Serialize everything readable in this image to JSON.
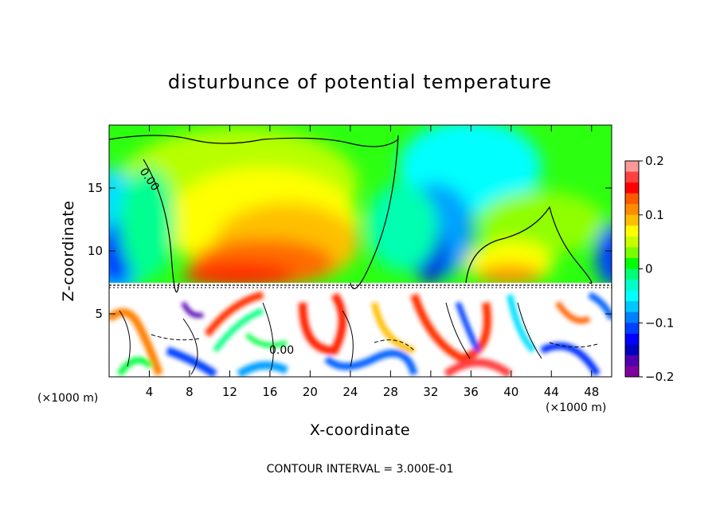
{
  "chart_data": {
    "type": "heatmap",
    "title": "disturbunce of potential temperature",
    "xlabel": "X-coordinate",
    "ylabel": "Z-coordinate",
    "x_unit_left": "(×1000 m)",
    "x_unit_right": "(×1000 m)",
    "xlim": [
      0,
      50
    ],
    "ylim": [
      0,
      20
    ],
    "x_ticks": [
      4,
      8,
      12,
      16,
      20,
      24,
      28,
      32,
      36,
      40,
      44,
      48
    ],
    "y_ticks": [
      5,
      10,
      15
    ],
    "colorbar": {
      "range": [
        -0.2,
        0.2
      ],
      "ticks": [
        "0.2",
        "0.1",
        "0",
        "−0.1",
        "−0.2"
      ],
      "colors": [
        "#ff9999",
        "#ff4040",
        "#ff0000",
        "#ff5a00",
        "#ff8c00",
        "#ffbf00",
        "#ffff00",
        "#c8ff00",
        "#78ff00",
        "#00ff00",
        "#00ff78",
        "#00ffc8",
        "#00ffff",
        "#00c8ff",
        "#0080ff",
        "#0040ff",
        "#0000ff",
        "#0000c0",
        "#5000b0",
        "#8000a0"
      ]
    },
    "contour_labels": [
      "0.00",
      "0.00"
    ],
    "footer": "CONTOUR INTERVAL = 3.000E-01"
  }
}
